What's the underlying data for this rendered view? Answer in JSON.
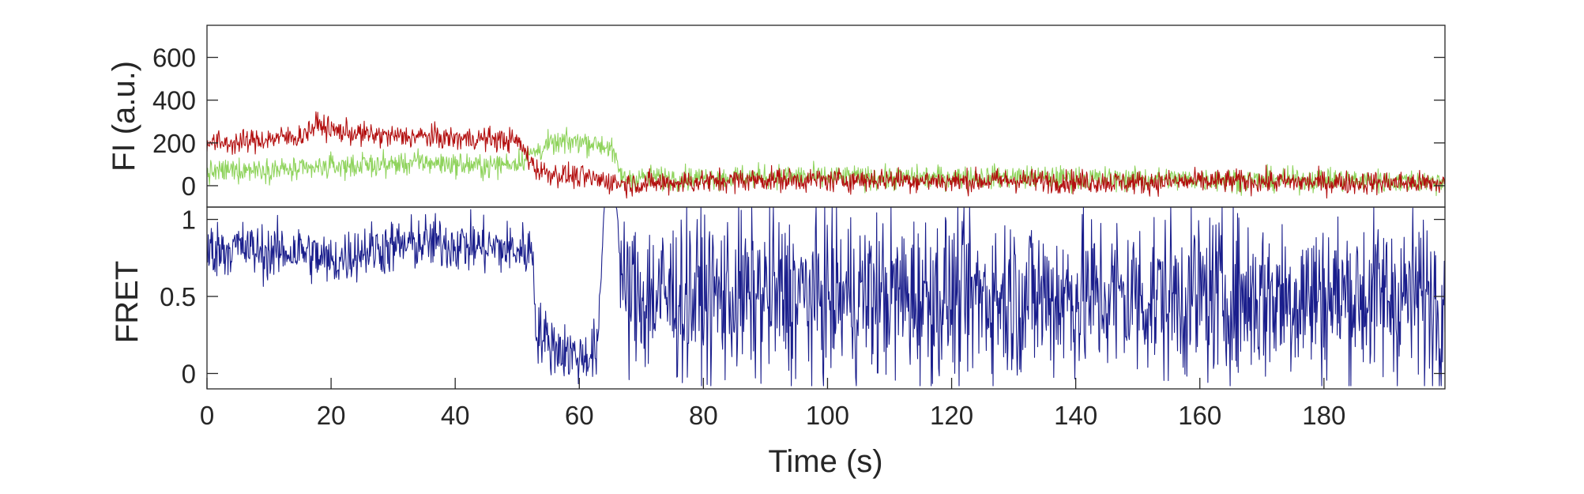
{
  "chart_data": [
    {
      "type": "line",
      "panel": "top",
      "xlabel": "",
      "ylabel": "FI (a.u.)",
      "xlim": [
        0,
        199.5
      ],
      "ylim": [
        -100,
        750
      ],
      "yticks": [
        0,
        200,
        400,
        600
      ],
      "ytick_labels": [
        "0",
        "200",
        "400",
        "600"
      ],
      "grid": false,
      "series": [
        {
          "color": "#8fd35c",
          "x": [
            0,
            5,
            10,
            15,
            20,
            25,
            30,
            35,
            40,
            45,
            50,
            53,
            55,
            60,
            62,
            65,
            67,
            70,
            80,
            90,
            100,
            110,
            120,
            130,
            140,
            150,
            160,
            170,
            180,
            190,
            199.5
          ],
          "values": [
            60,
            75,
            80,
            70,
            90,
            95,
            100,
            110,
            100,
            90,
            110,
            160,
            190,
            210,
            200,
            180,
            30,
            40,
            35,
            45,
            40,
            35,
            40,
            40,
            35,
            30,
            30,
            25,
            30,
            20,
            20
          ],
          "noise": 55
        },
        {
          "color": "#b30f0f",
          "x": [
            0,
            5,
            10,
            15,
            18,
            20,
            25,
            30,
            35,
            40,
            45,
            50,
            53,
            55,
            60,
            65,
            67,
            70,
            80,
            90,
            100,
            110,
            120,
            130,
            140,
            150,
            160,
            170,
            180,
            190,
            199.5
          ],
          "values": [
            200,
            200,
            220,
            230,
            290,
            260,
            240,
            230,
            230,
            220,
            220,
            210,
            80,
            60,
            40,
            20,
            10,
            10,
            20,
            30,
            25,
            30,
            20,
            25,
            20,
            15,
            20,
            20,
            15,
            15,
            10
          ],
          "noise": 55
        }
      ]
    },
    {
      "type": "line",
      "panel": "bottom",
      "xlabel": "Time (s)",
      "ylabel": "FRET",
      "xlim": [
        0,
        199.5
      ],
      "ylim": [
        -0.1,
        1.08
      ],
      "xticks": [
        0,
        20,
        40,
        60,
        80,
        100,
        120,
        140,
        160,
        180
      ],
      "xtick_labels": [
        "0",
        "20",
        "40",
        "60",
        "80",
        "100",
        "120",
        "140",
        "160",
        "180"
      ],
      "yticks": [
        0,
        0.5,
        1
      ],
      "ytick_labels": [
        "0",
        "0.5",
        "1"
      ],
      "grid": false,
      "series": [
        {
          "color": "#1a1e8c",
          "x": [
            0,
            5,
            10,
            15,
            20,
            25,
            30,
            35,
            40,
            45,
            50,
            52.5,
            53,
            55,
            60,
            63,
            64,
            66,
            67,
            70,
            80,
            90,
            100,
            110,
            120,
            130,
            140,
            150,
            160,
            170,
            180,
            190,
            199.5
          ],
          "values": [
            0.8,
            0.82,
            0.78,
            0.8,
            0.72,
            0.8,
            0.82,
            0.85,
            0.84,
            0.82,
            0.8,
            0.8,
            0.3,
            0.2,
            0.1,
            0.15,
            1.08,
            1.08,
            0.5,
            0.5,
            0.5,
            0.5,
            0.5,
            0.5,
            0.5,
            0.5,
            0.5,
            0.5,
            0.5,
            0.5,
            0.5,
            0.5,
            0.5
          ],
          "noise": [
            0.18,
            0.18,
            0.18,
            0.18,
            0.18,
            0.18,
            0.18,
            0.18,
            0.18,
            0.18,
            0.18,
            0.18,
            0.2,
            0.2,
            0.18,
            0.2,
            0,
            0,
            0.5,
            0.55,
            0.55,
            0.55,
            0.55,
            0.55,
            0.55,
            0.55,
            0.55,
            0.55,
            0.55,
            0.55,
            0.55,
            0.55,
            0.55
          ]
        }
      ]
    }
  ]
}
